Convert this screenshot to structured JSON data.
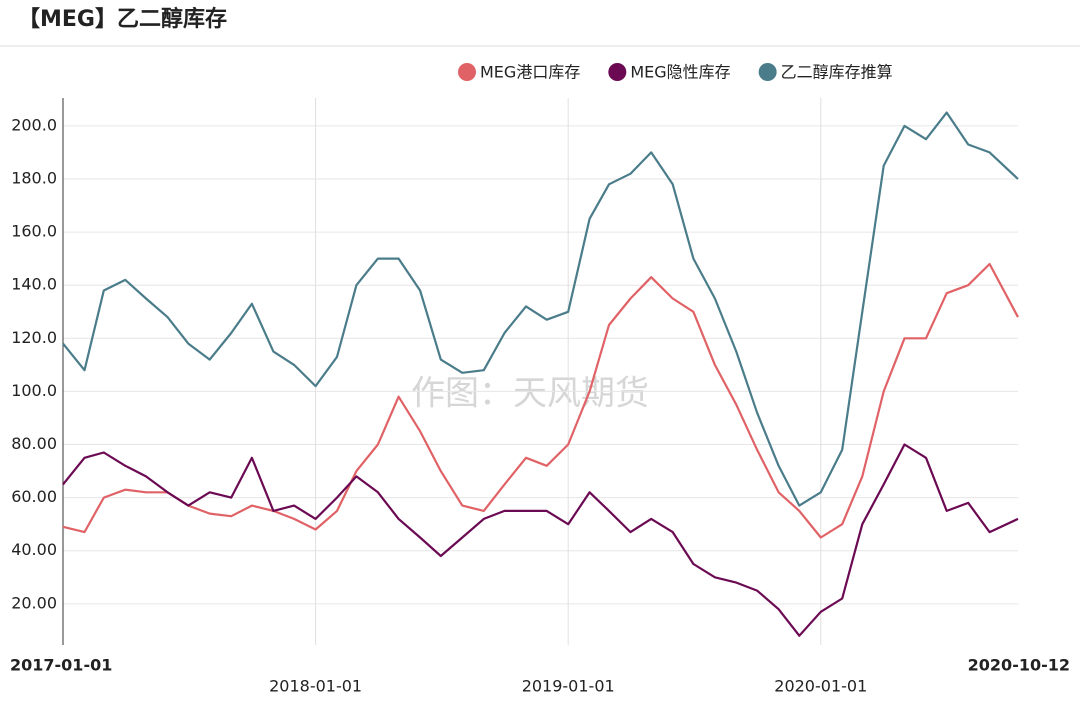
{
  "chart_data": {
    "type": "line",
    "title": "【MEG】乙二醇库存",
    "watermark": "作图：天风期货",
    "x": [
      "2017-01-01",
      "2017-02-01",
      "2017-03-01",
      "2017-04-01",
      "2017-05-01",
      "2017-06-01",
      "2017-07-01",
      "2017-08-01",
      "2017-09-01",
      "2017-10-01",
      "2017-11-01",
      "2017-12-01",
      "2018-01-01",
      "2018-02-01",
      "2018-03-01",
      "2018-04-01",
      "2018-05-01",
      "2018-06-01",
      "2018-07-01",
      "2018-08-01",
      "2018-09-01",
      "2018-10-01",
      "2018-11-01",
      "2018-12-01",
      "2019-01-01",
      "2019-02-01",
      "2019-03-01",
      "2019-04-01",
      "2019-05-01",
      "2019-06-01",
      "2019-07-01",
      "2019-08-01",
      "2019-09-01",
      "2019-10-01",
      "2019-11-01",
      "2019-12-01",
      "2020-01-01",
      "2020-02-01",
      "2020-03-01",
      "2020-04-01",
      "2020-05-01",
      "2020-06-01",
      "2020-07-01",
      "2020-08-01",
      "2020-09-01",
      "2020-10-12"
    ],
    "series": [
      {
        "name": "MEG港口库存",
        "color": "#e06266",
        "values": [
          49,
          47,
          60,
          63,
          62,
          62,
          57,
          54,
          53,
          57,
          55,
          52,
          48,
          55,
          70,
          80,
          98,
          85,
          70,
          57,
          55,
          65,
          75,
          72,
          80,
          100,
          125,
          135,
          143,
          135,
          130,
          110,
          95,
          78,
          62,
          55,
          45,
          50,
          68,
          100,
          120,
          120,
          137,
          140,
          148,
          128
        ]
      },
      {
        "name": "MEG隐性库存",
        "color": "#6b0a53",
        "values": [
          65,
          75,
          77,
          72,
          68,
          62,
          57,
          62,
          60,
          75,
          55,
          57,
          52,
          60,
          68,
          62,
          52,
          45,
          38,
          45,
          52,
          55,
          55,
          55,
          50,
          62,
          55,
          47,
          52,
          47,
          35,
          30,
          28,
          25,
          18,
          8,
          17,
          22,
          50,
          65,
          80,
          75,
          55,
          58,
          47,
          52
        ]
      },
      {
        "name": "乙二醇库存推算",
        "color": "#4a7c8a",
        "values": [
          118,
          108,
          138,
          142,
          135,
          128,
          118,
          112,
          122,
          133,
          115,
          110,
          102,
          113,
          140,
          150,
          150,
          138,
          112,
          107,
          108,
          122,
          132,
          127,
          130,
          165,
          178,
          182,
          190,
          178,
          150,
          135,
          115,
          92,
          72,
          57,
          62,
          78,
          130,
          185,
          200,
          195,
          205,
          193,
          190,
          180
        ]
      }
    ],
    "xlim": [
      "2017-01-01",
      "2020-10-12"
    ],
    "xticks": [
      "2017-01-01",
      "2018-01-01",
      "2019-01-01",
      "2020-01-01",
      "2020-10-12"
    ],
    "ylim": [
      4.5,
      210.5
    ],
    "yticks": [
      {
        "value": 20,
        "label": "20.00"
      },
      {
        "value": 40,
        "label": "40.00"
      },
      {
        "value": 60,
        "label": "60.00"
      },
      {
        "value": 80,
        "label": "80.00"
      },
      {
        "value": 100,
        "label": "100.0"
      },
      {
        "value": 120,
        "label": "120.0"
      },
      {
        "value": 140,
        "label": "140.0"
      },
      {
        "value": 160,
        "label": "160.0"
      },
      {
        "value": 180,
        "label": "180.0"
      },
      {
        "value": 200,
        "label": "200.0"
      }
    ],
    "grid": true,
    "legend": "top-right"
  }
}
